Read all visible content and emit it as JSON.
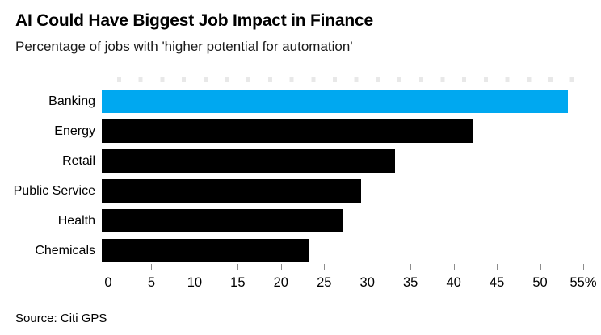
{
  "chart": {
    "title": "AI Could Have Biggest Job Impact in Finance",
    "subtitle": "Percentage of jobs with 'higher potential for automation'",
    "source": "Source: Citi GPS"
  },
  "chart_data": {
    "type": "bar",
    "orientation": "horizontal",
    "title": "AI Could Have Biggest Job Impact in Finance",
    "subtitle": "Percentage of jobs with 'higher potential for automation'",
    "source": "Source: Citi GPS",
    "categories": [
      "Banking",
      "Energy",
      "Retail",
      "Public Service",
      "Health",
      "Chemicals"
    ],
    "values": [
      54,
      43,
      34,
      30,
      28,
      24
    ],
    "bar_colors": [
      "#00A8F0",
      "#000000",
      "#000000",
      "#000000",
      "#000000",
      "#000000"
    ],
    "highlight_color": "#00A8F0",
    "default_bar_color": "#000000",
    "xlabel": "",
    "ylabel": "",
    "xlim": [
      0,
      55
    ],
    "x_ticks": [
      0,
      5,
      10,
      15,
      20,
      25,
      30,
      35,
      40,
      45,
      50,
      55
    ],
    "x_tick_labels": [
      "0",
      "5",
      "10",
      "15",
      "20",
      "25",
      "30",
      "35",
      "40",
      "45",
      "50",
      "55%"
    ],
    "grid": false,
    "legend": false,
    "minor_top_ticks": true
  }
}
